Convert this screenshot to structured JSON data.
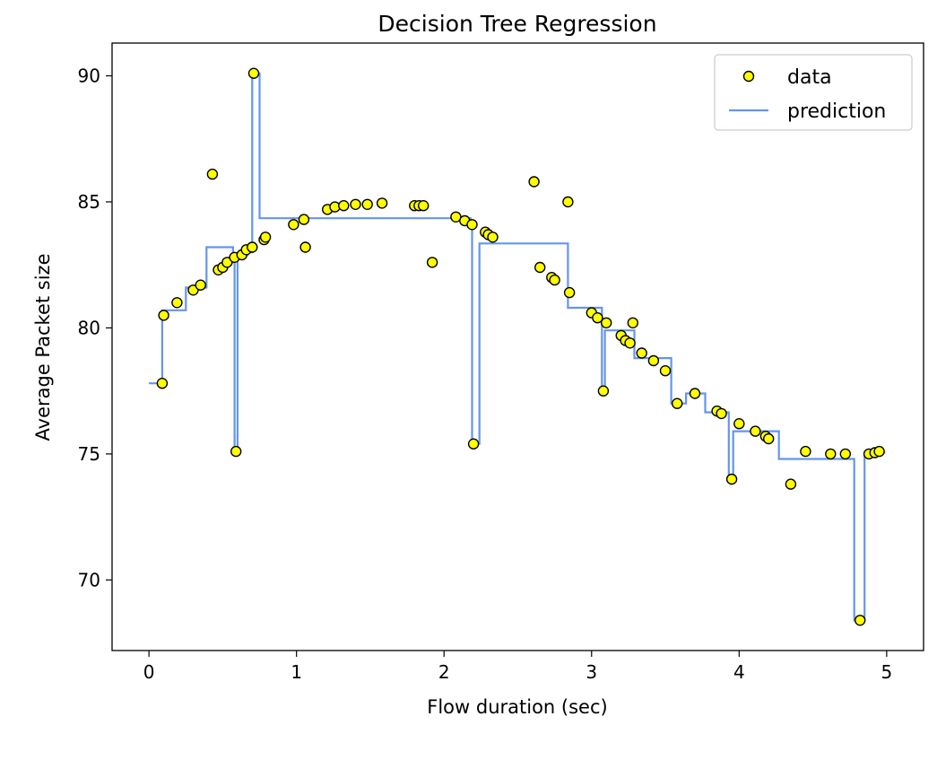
{
  "chart_data": {
    "type": "scatter",
    "title": "Decision Tree Regression",
    "xlabel": "Flow duration (sec)",
    "ylabel": "Average Packet size",
    "xlim": [
      -0.25,
      5.25
    ],
    "ylim": [
      67.2,
      91.3
    ],
    "xticks": [
      0,
      1,
      2,
      3,
      4,
      5
    ],
    "yticks": [
      70,
      75,
      80,
      85,
      90
    ],
    "grid": false,
    "legend": {
      "placement": "top-right",
      "entries": [
        {
          "label": "data",
          "kind": "marker",
          "color": "#ffff00",
          "edge": "#000000"
        },
        {
          "label": "prediction",
          "kind": "line",
          "color": "#6495ed"
        }
      ]
    },
    "series": [
      {
        "name": "data",
        "kind": "scatter",
        "color": "#ffff00",
        "edgecolor": "#000000",
        "points": [
          [
            0.09,
            77.8
          ],
          [
            0.1,
            80.5
          ],
          [
            0.19,
            81.0
          ],
          [
            0.3,
            81.5
          ],
          [
            0.35,
            81.7
          ],
          [
            0.43,
            86.1
          ],
          [
            0.47,
            82.3
          ],
          [
            0.5,
            82.4
          ],
          [
            0.53,
            82.6
          ],
          [
            0.58,
            82.8
          ],
          [
            0.59,
            75.1
          ],
          [
            0.63,
            82.9
          ],
          [
            0.66,
            83.1
          ],
          [
            0.7,
            83.2
          ],
          [
            0.71,
            90.1
          ],
          [
            0.78,
            83.5
          ],
          [
            0.79,
            83.6
          ],
          [
            0.98,
            84.1
          ],
          [
            1.05,
            84.3
          ],
          [
            1.06,
            83.2
          ],
          [
            1.21,
            84.7
          ],
          [
            1.26,
            84.8
          ],
          [
            1.32,
            84.85
          ],
          [
            1.4,
            84.9
          ],
          [
            1.48,
            84.9
          ],
          [
            1.58,
            84.95
          ],
          [
            1.8,
            84.85
          ],
          [
            1.83,
            84.85
          ],
          [
            1.86,
            84.85
          ],
          [
            1.92,
            82.6
          ],
          [
            2.08,
            84.4
          ],
          [
            2.14,
            84.25
          ],
          [
            2.19,
            84.1
          ],
          [
            2.2,
            75.4
          ],
          [
            2.28,
            83.8
          ],
          [
            2.3,
            83.7
          ],
          [
            2.33,
            83.6
          ],
          [
            2.61,
            85.8
          ],
          [
            2.65,
            82.4
          ],
          [
            2.73,
            82.0
          ],
          [
            2.75,
            81.9
          ],
          [
            2.84,
            85.0
          ],
          [
            2.85,
            81.4
          ],
          [
            3.0,
            80.6
          ],
          [
            3.04,
            80.4
          ],
          [
            3.08,
            77.5
          ],
          [
            3.1,
            80.2
          ],
          [
            3.2,
            79.7
          ],
          [
            3.23,
            79.5
          ],
          [
            3.26,
            79.4
          ],
          [
            3.28,
            80.2
          ],
          [
            3.34,
            79.0
          ],
          [
            3.42,
            78.7
          ],
          [
            3.5,
            78.3
          ],
          [
            3.58,
            77.0
          ],
          [
            3.7,
            77.4
          ],
          [
            3.85,
            76.7
          ],
          [
            3.88,
            76.6
          ],
          [
            3.95,
            74.0
          ],
          [
            4.0,
            76.2
          ],
          [
            4.11,
            75.9
          ],
          [
            4.18,
            75.7
          ],
          [
            4.2,
            75.6
          ],
          [
            4.35,
            73.8
          ],
          [
            4.45,
            75.1
          ],
          [
            4.62,
            75.0
          ],
          [
            4.72,
            75.0
          ],
          [
            4.82,
            68.4
          ],
          [
            4.88,
            75.0
          ],
          [
            4.92,
            75.05
          ],
          [
            4.95,
            75.1
          ]
        ]
      },
      {
        "name": "prediction",
        "kind": "line",
        "color": "#6495ed",
        "points": [
          [
            0.0,
            77.8
          ],
          [
            0.09,
            77.8
          ],
          [
            0.09,
            80.7
          ],
          [
            0.25,
            80.7
          ],
          [
            0.25,
            81.6
          ],
          [
            0.39,
            81.6
          ],
          [
            0.39,
            83.2
          ],
          [
            0.57,
            83.2
          ],
          [
            0.57,
            82.6
          ],
          [
            0.58,
            82.6
          ],
          [
            0.58,
            75.1
          ],
          [
            0.6,
            75.1
          ],
          [
            0.6,
            82.9
          ],
          [
            0.67,
            82.9
          ],
          [
            0.67,
            83.0
          ],
          [
            0.7,
            83.0
          ],
          [
            0.7,
            90.1
          ],
          [
            0.75,
            90.1
          ],
          [
            0.75,
            84.35
          ],
          [
            2.18,
            84.35
          ],
          [
            2.18,
            84.1
          ],
          [
            2.19,
            84.1
          ],
          [
            2.19,
            75.4
          ],
          [
            2.24,
            75.4
          ],
          [
            2.24,
            83.35
          ],
          [
            2.84,
            83.35
          ],
          [
            2.84,
            80.8
          ],
          [
            3.07,
            80.8
          ],
          [
            3.07,
            77.5
          ],
          [
            3.09,
            77.5
          ],
          [
            3.09,
            79.9
          ],
          [
            3.29,
            79.9
          ],
          [
            3.29,
            78.8
          ],
          [
            3.54,
            78.8
          ],
          [
            3.54,
            77.0
          ],
          [
            3.64,
            77.0
          ],
          [
            3.64,
            77.4
          ],
          [
            3.77,
            77.4
          ],
          [
            3.77,
            76.65
          ],
          [
            3.93,
            76.65
          ],
          [
            3.93,
            74.0
          ],
          [
            3.96,
            74.0
          ],
          [
            3.96,
            75.9
          ],
          [
            4.27,
            75.9
          ],
          [
            4.27,
            74.8
          ],
          [
            4.78,
            74.8
          ],
          [
            4.78,
            68.4
          ],
          [
            4.85,
            68.4
          ],
          [
            4.85,
            75.05
          ],
          [
            4.99,
            75.05
          ]
        ]
      }
    ]
  }
}
